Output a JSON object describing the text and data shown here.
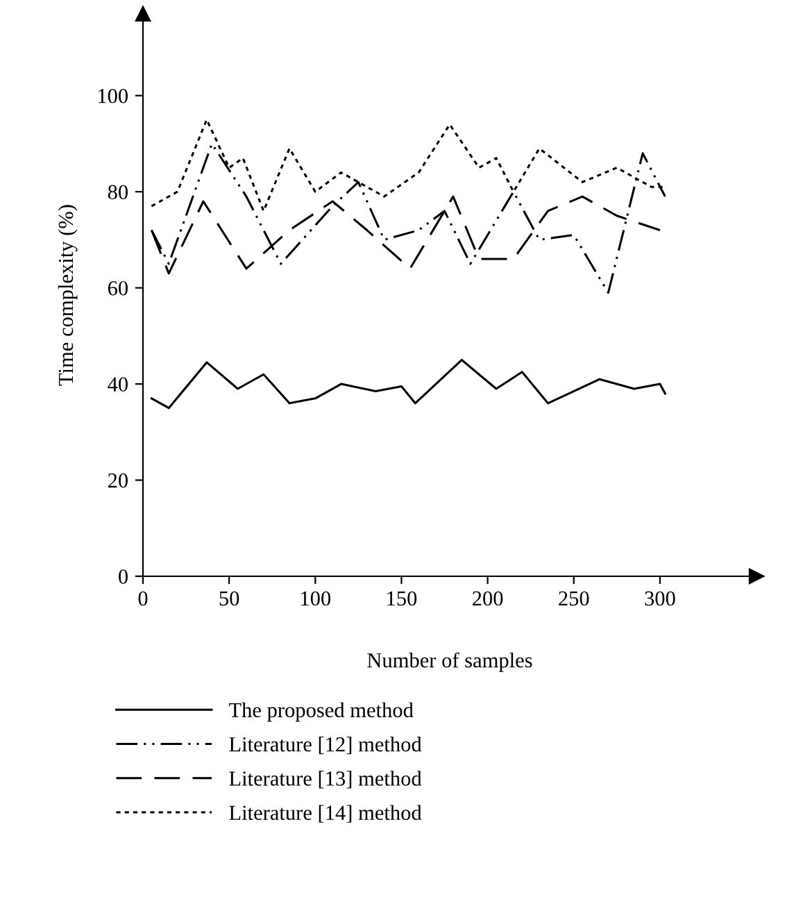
{
  "chart_data": {
    "type": "line",
    "xlabel": "Number of samples",
    "ylabel": "Time complexity (%)",
    "xlim": [
      0,
      356
    ],
    "ylim": [
      0,
      117
    ],
    "xticks": [
      0,
      50,
      100,
      150,
      200,
      250,
      300
    ],
    "yticks": [
      0,
      20,
      40,
      60,
      80,
      100
    ],
    "grid": false,
    "legend": "bottom",
    "marker": "none",
    "series": [
      {
        "name": "The proposed method",
        "color": "#000000",
        "line_style": "solid",
        "x": [
          5,
          15,
          37,
          55,
          70,
          85,
          100,
          115,
          135,
          150,
          158,
          185,
          205,
          220,
          235,
          265,
          285,
          300,
          303
        ],
        "values": [
          37,
          35,
          44.5,
          39,
          42,
          36,
          37,
          40,
          38.5,
          39.5,
          36,
          45,
          39,
          42.5,
          36,
          41,
          39,
          40,
          38
        ]
      },
      {
        "name": "Literature [12] method",
        "color": "#000000",
        "line_style": "dashdot",
        "x": [
          5,
          15,
          30,
          40,
          60,
          80,
          110,
          125,
          140,
          160,
          175,
          190,
          215,
          230,
          250,
          270,
          290,
          303
        ],
        "values": [
          72,
          65,
          80,
          90,
          79,
          65,
          77,
          82,
          70,
          72,
          76,
          65,
          80,
          70,
          71,
          59,
          88,
          79
        ]
      },
      {
        "name": "Literature [13] method",
        "color": "#000000",
        "line_style": "dashed",
        "x": [
          5,
          15,
          35,
          60,
          85,
          110,
          130,
          155,
          180,
          195,
          215,
          235,
          255,
          275,
          300
        ],
        "values": [
          72,
          63,
          78,
          64,
          72,
          78,
          72,
          64,
          79,
          66,
          66,
          76,
          79,
          75,
          72
        ]
      },
      {
        "name": "Literature [14] method",
        "color": "#000000",
        "line_style": "dotted",
        "x": [
          5,
          20,
          37,
          50,
          58,
          70,
          85,
          100,
          115,
          140,
          160,
          178,
          195,
          205,
          215,
          230,
          255,
          275,
          295,
          303
        ],
        "values": [
          77,
          80,
          95,
          85,
          87,
          76,
          89,
          80,
          84,
          79,
          84,
          94,
          85,
          87,
          80,
          89,
          82,
          85,
          81,
          81
        ]
      }
    ]
  }
}
